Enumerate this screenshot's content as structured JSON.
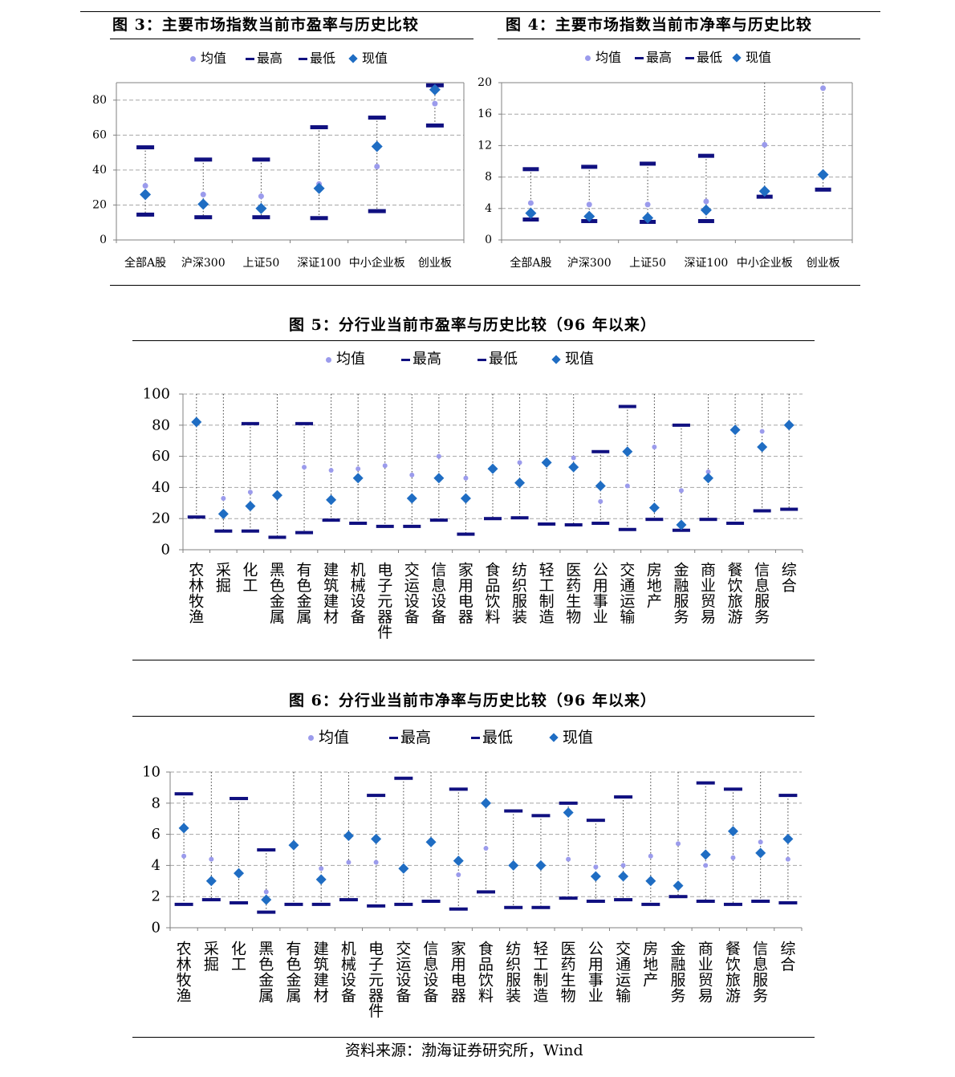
{
  "report": {
    "footer_source": "资料来源：渤海证券研究所，Wind"
  },
  "colors": {
    "mean": "#9b9bec",
    "max_min": "#101080",
    "current": "#1f6dc3",
    "grid": "#a6a6a6",
    "axis": "#808080",
    "whisker": "#404040"
  },
  "chart_data": [
    {
      "type": "scatter",
      "title": "图 3：主要市场指数当前市盈率与历史比较",
      "categories": [
        "全部A股",
        "沪深300",
        "上证50",
        "深证100",
        "中小企业板",
        "创业板"
      ],
      "ylim": [
        0,
        90
      ],
      "yticks": [
        0,
        20,
        40,
        60,
        80
      ],
      "grid": true,
      "legend": "top",
      "series": [
        {
          "name": "均值",
          "values": [
            31,
            26,
            25,
            32,
            42,
            78
          ]
        },
        {
          "name": "最高",
          "values": [
            53,
            46,
            46,
            64.5,
            70,
            88.5
          ]
        },
        {
          "name": "最低",
          "values": [
            14.5,
            13,
            13,
            12.5,
            16.5,
            65.5
          ]
        },
        {
          "name": "现值",
          "values": [
            26,
            20.5,
            18,
            29.5,
            53.5,
            86
          ]
        }
      ]
    },
    {
      "type": "scatter",
      "title": "图 4：主要市场指数当前市净率与历史比较",
      "categories": [
        "全部A股",
        "沪深300",
        "上证50",
        "深证100",
        "中小企业板",
        "创业板"
      ],
      "ylim": [
        0,
        20
      ],
      "yticks": [
        0,
        4,
        8,
        12,
        16,
        20
      ],
      "grid": true,
      "legend": "top",
      "series": [
        {
          "name": "均值",
          "values": [
            4.7,
            4.5,
            4.5,
            4.9,
            12.1,
            19.3
          ]
        },
        {
          "name": "最高",
          "values": [
            9.0,
            9.3,
            9.7,
            10.7,
            null,
            null
          ]
        },
        {
          "name": "最低",
          "values": [
            2.6,
            2.4,
            2.3,
            2.4,
            5.5,
            6.4
          ]
        },
        {
          "name": "现值",
          "values": [
            3.4,
            3.0,
            2.8,
            3.8,
            6.2,
            8.3
          ]
        }
      ]
    },
    {
      "type": "scatter",
      "title": "图 5：分行业当前市盈率与历史比较（96 年以来）",
      "categories": [
        "农林牧渔",
        "采掘",
        "化工",
        "黑色金属",
        "有色金属",
        "建筑建材",
        "机械设备",
        "电子元器件",
        "交运设备",
        "信息设备",
        "家用电器",
        "食品饮料",
        "纺织服装",
        "轻工制造",
        "医药生物",
        "公用事业",
        "交通运输",
        "房地产",
        "金融服务",
        "商业贸易",
        "餐饮旅游",
        "信息服务",
        "综合"
      ],
      "ylim": [
        0,
        100
      ],
      "yticks": [
        0,
        20,
        40,
        60,
        80,
        100
      ],
      "grid": true,
      "legend": "top",
      "series": [
        {
          "name": "均值",
          "values": [
            null,
            33,
            37,
            null,
            53,
            51,
            52,
            54,
            48,
            60,
            46,
            null,
            56,
            null,
            59,
            31,
            41,
            66,
            38,
            50,
            null,
            76,
            null
          ]
        },
        {
          "name": "最高",
          "values": [
            null,
            null,
            81,
            null,
            81,
            null,
            null,
            null,
            null,
            null,
            null,
            null,
            null,
            null,
            null,
            63,
            92,
            null,
            80,
            null,
            null,
            null,
            null
          ]
        },
        {
          "name": "最低",
          "values": [
            21,
            12,
            12,
            8,
            11,
            19,
            17,
            15,
            15,
            19,
            10,
            20,
            20.5,
            16.5,
            16,
            17,
            13,
            19.5,
            12.5,
            19.5,
            17,
            25,
            26
          ]
        },
        {
          "name": "现值",
          "values": [
            82,
            23,
            28,
            35,
            null,
            32,
            46,
            null,
            33,
            46,
            33,
            52,
            43,
            56,
            53,
            41,
            63,
            27,
            16,
            46,
            77,
            66,
            80
          ]
        }
      ]
    },
    {
      "type": "scatter",
      "title": "图 6：分行业当前市净率与历史比较（96 年以来）",
      "categories": [
        "农林牧渔",
        "采掘",
        "化工",
        "黑色金属",
        "有色金属",
        "建筑建材",
        "机械设备",
        "电子元器件",
        "交运设备",
        "信息设备",
        "家用电器",
        "食品饮料",
        "纺织服装",
        "轻工制造",
        "医药生物",
        "公用事业",
        "交通运输",
        "房地产",
        "金融服务",
        "商业贸易",
        "餐饮旅游",
        "信息服务",
        "综合"
      ],
      "ylim": [
        0,
        10
      ],
      "yticks": [
        0,
        2,
        4,
        6,
        8,
        10
      ],
      "grid": true,
      "legend": "top",
      "series": [
        {
          "name": "均值",
          "values": [
            4.6,
            4.4,
            null,
            2.3,
            null,
            3.8,
            4.2,
            4.2,
            null,
            null,
            3.4,
            5.1,
            null,
            null,
            4.4,
            3.9,
            4.0,
            4.6,
            5.4,
            4.0,
            4.5,
            5.5,
            4.4
          ]
        },
        {
          "name": "最高",
          "values": [
            8.6,
            null,
            8.3,
            5.0,
            null,
            null,
            null,
            8.5,
            9.6,
            null,
            8.9,
            null,
            7.5,
            7.2,
            8.0,
            6.9,
            8.4,
            null,
            null,
            9.3,
            8.9,
            null,
            8.5
          ]
        },
        {
          "name": "最低",
          "values": [
            1.5,
            1.8,
            1.6,
            1.0,
            1.5,
            1.5,
            1.8,
            1.4,
            1.5,
            1.7,
            1.2,
            2.3,
            1.3,
            1.3,
            1.9,
            1.7,
            1.8,
            1.5,
            2.0,
            1.7,
            1.5,
            1.7,
            1.6
          ]
        },
        {
          "name": "现值",
          "values": [
            6.4,
            3.0,
            3.5,
            1.8,
            5.3,
            3.1,
            5.9,
            5.7,
            3.8,
            5.5,
            4.3,
            8.0,
            4.0,
            4.0,
            7.4,
            3.3,
            3.3,
            3.0,
            2.7,
            4.7,
            6.2,
            4.8,
            5.7
          ]
        }
      ]
    }
  ]
}
